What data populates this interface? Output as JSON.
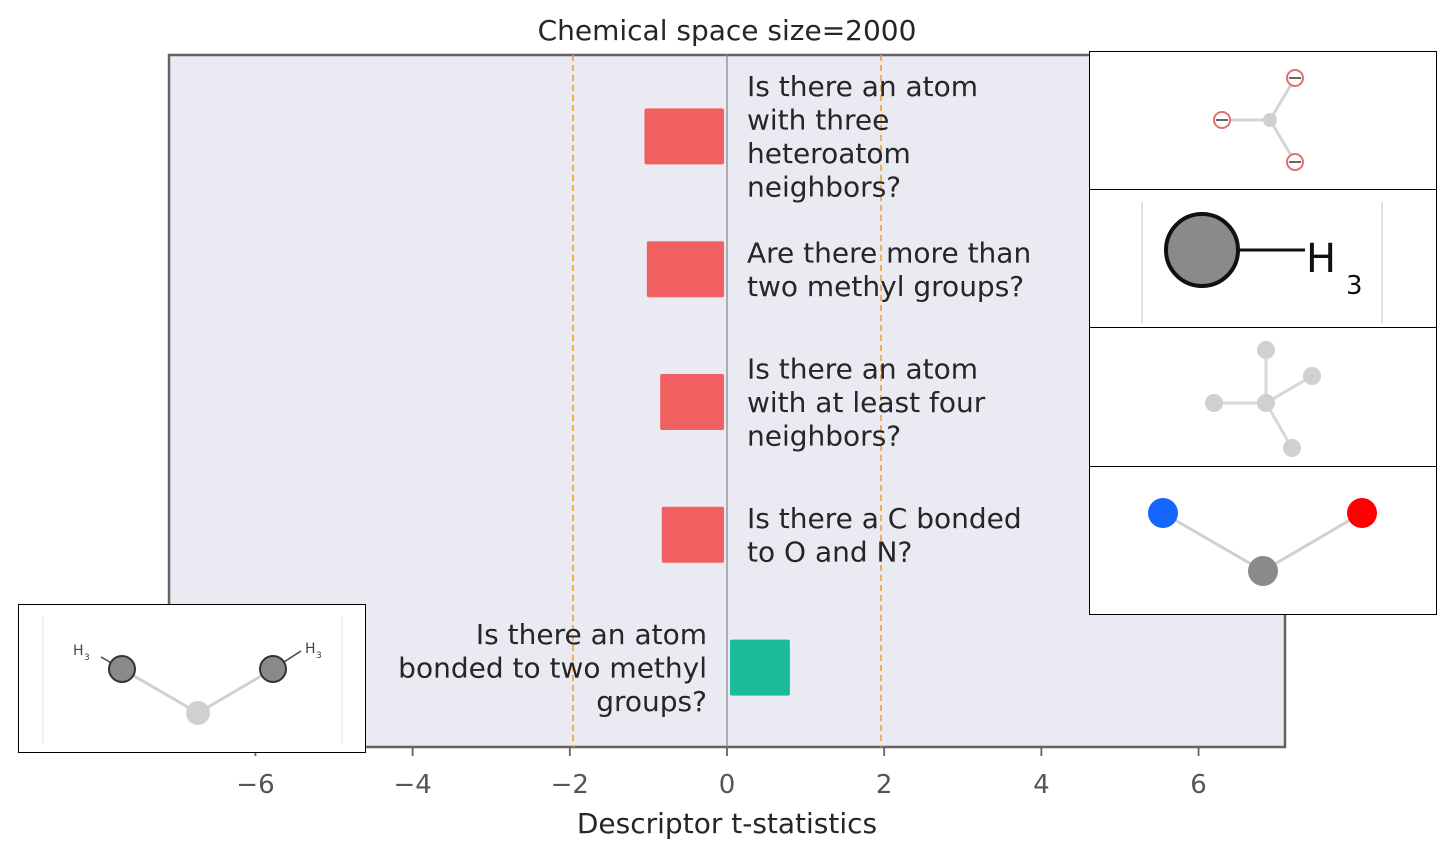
{
  "chart_data": {
    "type": "bar",
    "orientation": "horizontal",
    "title": "Chemical space size=2000",
    "xlabel": "Descriptor t-statistics",
    "ylabel": "",
    "xlim": [
      -7.1,
      7.1
    ],
    "xticks": [
      -6,
      -4,
      -2,
      0,
      2,
      4,
      6
    ],
    "xtick_labels": [
      "−6",
      "−4",
      "−2",
      "0",
      "2",
      "4",
      "6"
    ],
    "threshold_lines": [
      -1.96,
      1.96
    ],
    "threshold_color": "#f0a030",
    "grid": false,
    "bars": [
      {
        "label": "Is there an atom with three heteroatom neighbors?",
        "lines": [
          "Is there an atom",
          "with three",
          "heteroatom",
          "neighbors?"
        ],
        "value": -1.05,
        "color": "#f06060"
      },
      {
        "label": "Are there more than two methyl groups?",
        "lines": [
          "Are there more than",
          "two methyl groups?"
        ],
        "value": -1.02,
        "color": "#f06060"
      },
      {
        "label": "Is there an atom with at least four neighbors?",
        "lines": [
          "Is there an atom",
          "with at least four",
          "neighbors?"
        ],
        "value": -0.85,
        "color": "#f06060"
      },
      {
        "label": "Is there a C bonded to O and N?",
        "lines": [
          "Is there a C bonded",
          "to O and N?"
        ],
        "value": -0.83,
        "color": "#f06060"
      },
      {
        "label": "Is there an atom bonded to two methyl groups?",
        "lines": [
          "Is there an atom",
          "bonded to two methyl",
          "groups?"
        ],
        "value": 0.8,
        "color": "#1abc9c"
      }
    ],
    "inset_labels": [
      "H",
      "3",
      "H",
      "3",
      "H",
      "3"
    ]
  }
}
